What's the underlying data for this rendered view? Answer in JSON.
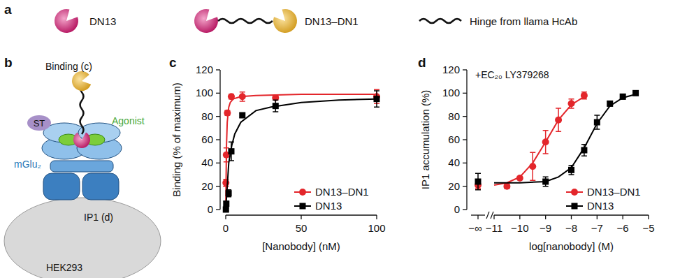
{
  "panel_letters": [
    "a",
    "b",
    "c",
    "d"
  ],
  "panel_a": {
    "items": [
      "DN13",
      "DN13–DN1",
      "Hinge from llama HcAb"
    ]
  },
  "panel_b": {
    "title": "Binding (c)",
    "labels": [
      "ST",
      "Agonist",
      "mGlu₂",
      "IP1 (d)",
      "HEK293"
    ]
  },
  "chart_data": [
    {
      "type": "scatter",
      "x_label": "[Nanobody] (nM)",
      "y_label": "Binding (% of maximum)",
      "xlim": [
        0,
        100
      ],
      "xticks": [
        0,
        50,
        100
      ],
      "ylim": [
        0,
        120
      ],
      "yticks": [
        0,
        20,
        40,
        60,
        80,
        100,
        120
      ],
      "legend": "lower right",
      "series": [
        {
          "name": "DN13–DN1",
          "color": "#e3262b",
          "marker": "circle",
          "x": [
            0.12,
            0.37,
            1.1,
            3.7,
            11,
            33,
            100
          ],
          "values": [
            23,
            47,
            83,
            97,
            97,
            96,
            97
          ],
          "errors": [
            3,
            6,
            2,
            2,
            4,
            2,
            6
          ],
          "fit": {
            "x": [
              0,
              0.5,
              1,
              2,
              3,
              5,
              10,
              20,
              50,
              100
            ],
            "values": [
              0,
              55,
              75,
              88,
              92,
              95,
              97,
              98,
              99,
              99
            ]
          }
        },
        {
          "name": "DN13",
          "color": "#000000",
          "marker": "square",
          "x": [
            0.12,
            0.37,
            1.9,
            3.7,
            11,
            33,
            100
          ],
          "values": [
            0,
            5,
            14,
            50,
            81,
            89,
            95
          ],
          "errors": [
            1,
            2,
            3,
            8,
            2,
            5,
            7
          ],
          "fit": {
            "x": [
              0,
              2,
              4,
              6,
              10,
              20,
              30,
              50,
              75,
              100
            ],
            "values": [
              0,
              40,
              55,
              65,
              75,
              85,
              88,
              92,
              94,
              95
            ]
          }
        }
      ]
    },
    {
      "type": "scatter",
      "annotation": "+EC₂₀ LY379268",
      "x_label": "log[nanobody] (M)",
      "y_label": "IP1 accumulation (%)",
      "xlim": [
        -11,
        -5
      ],
      "xticks": [
        {
          "value": -11,
          "label": "−11"
        },
        {
          "value": -10,
          "label": "−10"
        },
        {
          "value": -9,
          "label": "−9"
        },
        {
          "value": -8,
          "label": "−8"
        },
        {
          "value": -7,
          "label": "−7"
        },
        {
          "value": -6,
          "label": "−6"
        },
        {
          "value": -5,
          "label": "−5"
        }
      ],
      "x_baseline_label": "−∞",
      "ylim": [
        0,
        120
      ],
      "yticks": [
        0,
        20,
        40,
        60,
        80,
        100,
        120
      ],
      "legend": "lower right",
      "series": [
        {
          "name": "DN13–DN1",
          "color": "#e3262b",
          "marker": "circle",
          "baseline": 21,
          "baseline_error": 3,
          "x": [
            -10.5,
            -10,
            -9.5,
            -9,
            -8.5,
            -8,
            -7.5
          ],
          "values": [
            20,
            27,
            37,
            58,
            77,
            91,
            98
          ],
          "errors": [
            2,
            1,
            12,
            10,
            10,
            4,
            3
          ],
          "fit": {
            "x": [
              -11,
              -10.5,
              -10,
              -9.5,
              -9,
              -8.5,
              -8,
              -7.5
            ],
            "values": [
              21,
              23,
              28,
              40,
              58,
              77,
              90,
              97
            ]
          }
        },
        {
          "name": "DN13",
          "color": "#000000",
          "marker": "square",
          "baseline": 24,
          "baseline_error": 7,
          "x": [
            -9,
            -8,
            -7.5,
            -7,
            -6.5,
            -6,
            -5.5
          ],
          "values": [
            24,
            34,
            51,
            75,
            91,
            97,
            100
          ],
          "errors": [
            4,
            4,
            5,
            6,
            2,
            2,
            1
          ],
          "fit": {
            "x": [
              -11,
              -10,
              -9,
              -8.5,
              -8,
              -7.5,
              -7,
              -6.5,
              -6,
              -5.5
            ],
            "values": [
              23,
              23,
              24,
              28,
              36,
              53,
              74,
              89,
              96,
              99
            ]
          }
        }
      ]
    }
  ]
}
